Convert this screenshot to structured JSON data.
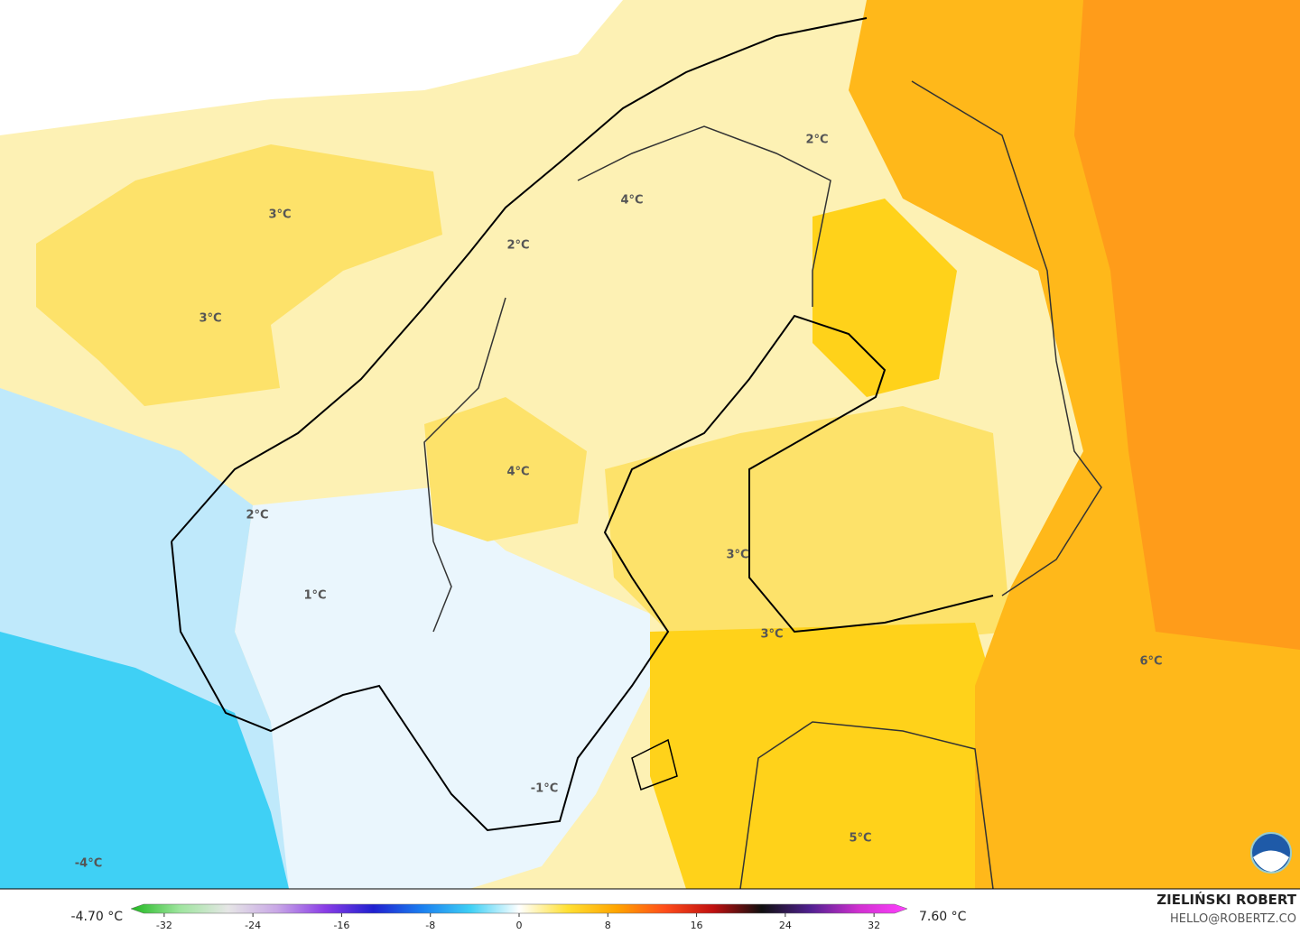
{
  "map": {
    "labels": [
      "3°C",
      "3°C",
      "2°C",
      "4°C",
      "2°C",
      "4°C",
      "2°C",
      "1°C",
      "3°C",
      "3°C",
      "6°C",
      "-1°C",
      "5°C",
      "-4°C"
    ],
    "legend": {
      "min_label": "-4.70 °C",
      "max_label": "7.60 °C",
      "lim": [
        -35,
        35
      ],
      "ticks": [
        -32,
        -24,
        -16,
        -8,
        0,
        8,
        16,
        24,
        32
      ],
      "colors": [
        "#1fb81f",
        "#9ee59e",
        "#e6e6e6",
        "#c9a8e6",
        "#8a3de6",
        "#2020d0",
        "#1a7ff0",
        "#3fd0f5",
        "#ffffff",
        "#ffe033",
        "#ffa500",
        "#ff4d1a",
        "#c01010",
        "#101010",
        "#502090",
        "#d030d0",
        "#ff40ff"
      ]
    },
    "credit": {
      "author": "ZIELIŃSKI ROBERT",
      "contact": "HELLO@ROBERTZ.CO"
    }
  }
}
